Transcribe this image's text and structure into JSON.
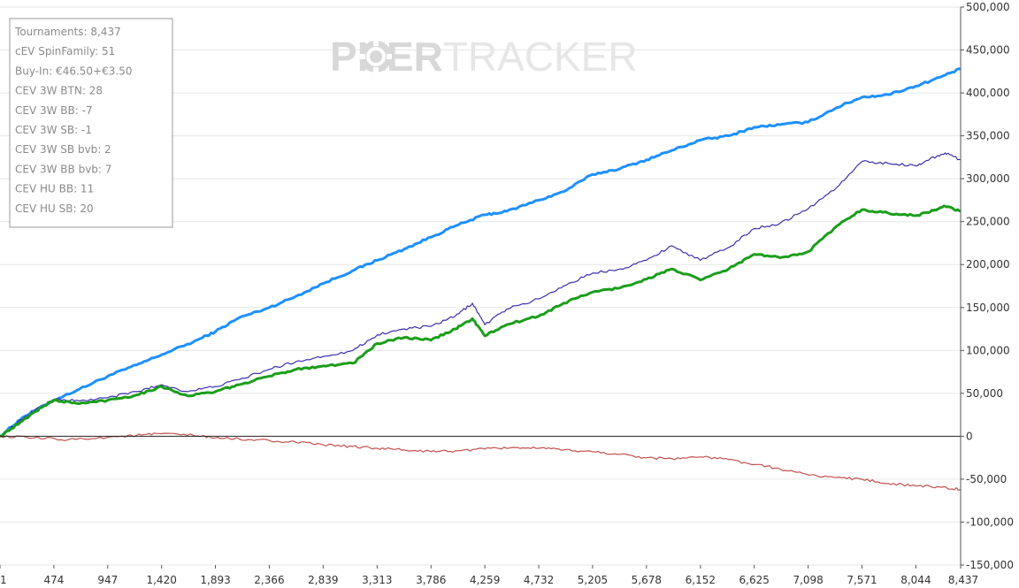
{
  "watermark": {
    "part1": "P",
    "part2": "KER",
    "part3": "TRACKER"
  },
  "stats_box": [
    "Tournaments: 8,437",
    "cEV SpinFamily: 51",
    "Buy-In: €46.50+€3.50",
    "CEV 3W BTN: 28",
    "CEV 3W BB: -7",
    "CEV 3W SB: -1",
    "CEV 3W SB bvb: 2",
    "CEV 3W BB bvb: 7",
    "CEV HU BB: 11",
    "CEV HU SB: 20"
  ],
  "chart_data": {
    "type": "line",
    "xlabel": "",
    "ylabel": "",
    "xlim": [
      1,
      8437
    ],
    "ylim": [
      -150000,
      500000
    ],
    "x_ticks": [
      1,
      474,
      947,
      1420,
      1893,
      2366,
      2839,
      3313,
      3786,
      4259,
      4732,
      5205,
      5678,
      6152,
      6625,
      7098,
      7571,
      8044,
      8437
    ],
    "x_tick_labels": [
      "1",
      "474",
      "947",
      "1,420",
      "1,893",
      "2,366",
      "2,839",
      "3,313",
      "3,786",
      "4,259",
      "4,732",
      "5,205",
      "5,678",
      "6,152",
      "6,625",
      "7,098",
      "7,571",
      "8,044",
      "8,437"
    ],
    "y_ticks": [
      -150000,
      -100000,
      -50000,
      0,
      50000,
      100000,
      150000,
      200000,
      250000,
      300000,
      350000,
      400000,
      450000,
      500000
    ],
    "y_tick_labels": [
      "-150,000",
      "-100,000",
      "-50,000",
      "0",
      "50,000",
      "100,000",
      "150,000",
      "200,000",
      "250,000",
      "300,000",
      "350,000",
      "400,000",
      "450,000",
      "500,000"
    ],
    "grid": "horizontal",
    "zero_line": true,
    "series": [
      {
        "color": "#1e90ff",
        "stroke": "thick",
        "x": [
          1,
          200,
          474,
          700,
          947,
          1200,
          1420,
          1700,
          1893,
          2100,
          2366,
          2600,
          2839,
          3100,
          3313,
          3550,
          3786,
          4000,
          4259,
          4450,
          4732,
          4950,
          5205,
          5450,
          5678,
          5900,
          6152,
          6400,
          6625,
          6850,
          7098,
          7350,
          7571,
          7800,
          8044,
          8250,
          8437
        ],
        "y": [
          0,
          22000,
          42000,
          55000,
          70000,
          83000,
          95000,
          110000,
          122000,
          138000,
          150000,
          163000,
          178000,
          193000,
          205000,
          218000,
          232000,
          245000,
          258000,
          262000,
          275000,
          285000,
          305000,
          312000,
          322000,
          333000,
          345000,
          350000,
          360000,
          363000,
          366000,
          383000,
          395000,
          398000,
          408000,
          418000,
          428000
        ]
      },
      {
        "color": "#3b2fae",
        "stroke": "thin",
        "x": [
          1,
          200,
          300,
          474,
          700,
          947,
          1200,
          1420,
          1650,
          1893,
          2100,
          2366,
          2600,
          2839,
          3100,
          3313,
          3550,
          3786,
          4000,
          4150,
          4259,
          4450,
          4732,
          4950,
          5205,
          5450,
          5678,
          5900,
          6152,
          6400,
          6625,
          6850,
          7098,
          7350,
          7571,
          7800,
          8044,
          8200,
          8300,
          8437
        ],
        "y": [
          0,
          20000,
          30000,
          43000,
          41000,
          45000,
          52000,
          60000,
          52000,
          58000,
          66000,
          78000,
          87000,
          93000,
          100000,
          118000,
          125000,
          128000,
          140000,
          155000,
          130000,
          148000,
          160000,
          175000,
          190000,
          195000,
          205000,
          222000,
          205000,
          220000,
          242000,
          248000,
          265000,
          290000,
          320000,
          318000,
          315000,
          325000,
          330000,
          322000
        ]
      },
      {
        "color": "#1b9e1b",
        "stroke": "thick",
        "x": [
          1,
          200,
          300,
          474,
          700,
          947,
          1200,
          1420,
          1650,
          1893,
          2100,
          2366,
          2600,
          2839,
          3100,
          3313,
          3550,
          3786,
          4000,
          4150,
          4259,
          4450,
          4732,
          4950,
          5205,
          5450,
          5678,
          5900,
          6152,
          6400,
          6625,
          6850,
          7098,
          7350,
          7571,
          7800,
          8044,
          8200,
          8300,
          8437
        ],
        "y": [
          0,
          18000,
          28000,
          42000,
          38000,
          42000,
          48000,
          58000,
          47000,
          52000,
          60000,
          70000,
          78000,
          82000,
          85000,
          108000,
          115000,
          112000,
          125000,
          137000,
          117000,
          130000,
          140000,
          155000,
          168000,
          173000,
          183000,
          195000,
          182000,
          195000,
          212000,
          208000,
          215000,
          245000,
          264000,
          260000,
          257000,
          263000,
          268000,
          262000
        ]
      },
      {
        "color": "#c0504d",
        "stroke": "thin",
        "x": [
          1,
          300,
          600,
          947,
          1200,
          1420,
          1700,
          1893,
          2100,
          2366,
          2600,
          2839,
          3100,
          3313,
          3550,
          3786,
          4000,
          4259,
          4500,
          4732,
          4950,
          5205,
          5450,
          5678,
          5900,
          6152,
          6400,
          6625,
          6850,
          7098,
          7350,
          7571,
          7800,
          8044,
          8250,
          8437
        ],
        "y": [
          0,
          -2000,
          -4000,
          -1000,
          1000,
          3000,
          1000,
          -2000,
          -3000,
          -5000,
          -7000,
          -10000,
          -12000,
          -14000,
          -16000,
          -18000,
          -17000,
          -15000,
          -13000,
          -14000,
          -16000,
          -18000,
          -21000,
          -25000,
          -26000,
          -24000,
          -27000,
          -33000,
          -38000,
          -45000,
          -48000,
          -50000,
          -55000,
          -58000,
          -59000,
          -62000
        ]
      }
    ]
  }
}
